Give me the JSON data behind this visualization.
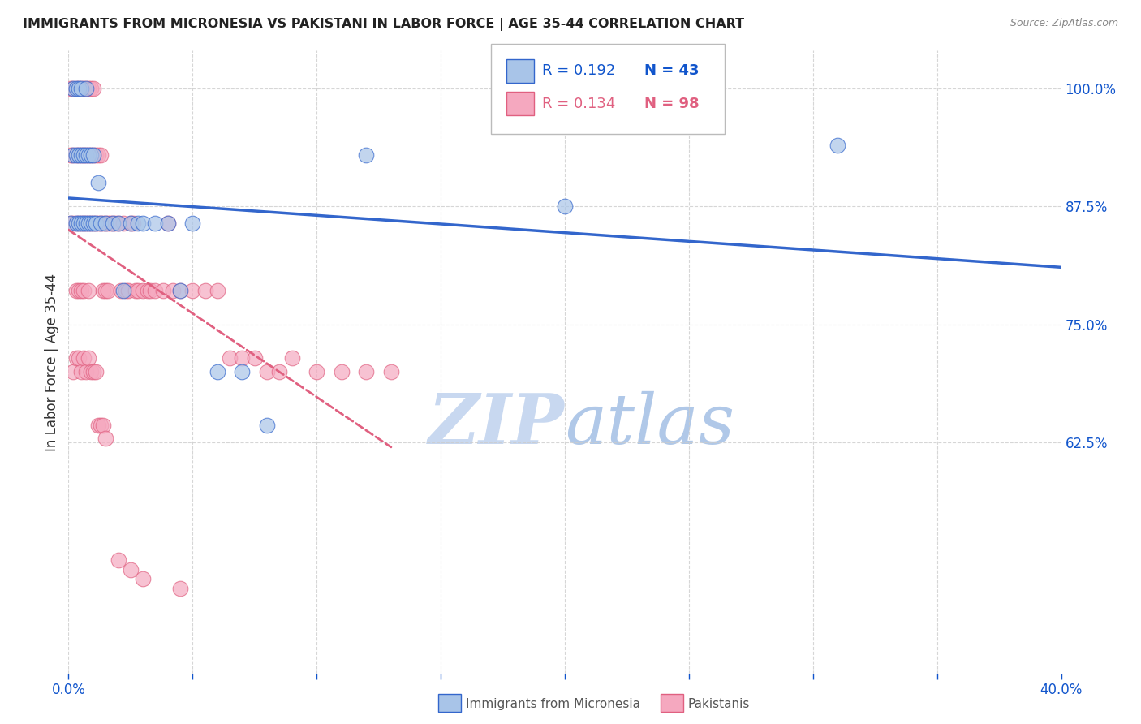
{
  "title": "IMMIGRANTS FROM MICRONESIA VS PAKISTANI IN LABOR FORCE | AGE 35-44 CORRELATION CHART",
  "source": "Source: ZipAtlas.com",
  "ylabel": "In Labor Force | Age 35-44",
  "xlim": [
    0.0,
    0.4
  ],
  "ylim": [
    0.38,
    1.04
  ],
  "yticks": [
    0.625,
    0.75,
    0.875,
    1.0
  ],
  "ytick_labels": [
    "62.5%",
    "75.0%",
    "87.5%",
    "100.0%"
  ],
  "xticks": [
    0.0,
    0.05,
    0.1,
    0.15,
    0.2,
    0.25,
    0.3,
    0.35,
    0.4
  ],
  "xtick_labels": [
    "0.0%",
    "",
    "",
    "",
    "",
    "",
    "",
    "",
    "40.0%"
  ],
  "micronesia_R": 0.192,
  "micronesia_N": 43,
  "pakistani_R": 0.134,
  "pakistani_N": 98,
  "micronesia_color": "#a8c4e8",
  "pakistani_color": "#f5a8bf",
  "micronesia_line_color": "#3366cc",
  "pakistani_line_color": "#e06080",
  "background_color": "#ffffff",
  "grid_color": "#cccccc",
  "title_color": "#222222",
  "source_color": "#888888",
  "axis_color": "#1155cc",
  "watermark_zip_color": "#c8d8f0",
  "watermark_atlas_color": "#b0c8e8",
  "micronesia_x": [
    0.001,
    0.002,
    0.002,
    0.003,
    0.003,
    0.003,
    0.004,
    0.004,
    0.004,
    0.005,
    0.005,
    0.005,
    0.006,
    0.006,
    0.007,
    0.007,
    0.007,
    0.008,
    0.008,
    0.009,
    0.009,
    0.01,
    0.01,
    0.011,
    0.012,
    0.013,
    0.015,
    0.018,
    0.02,
    0.022,
    0.025,
    0.028,
    0.03,
    0.035,
    0.04,
    0.045,
    0.05,
    0.06,
    0.07,
    0.08,
    0.12,
    0.2,
    0.31
  ],
  "micronesia_y": [
    0.857,
    0.929,
    1.0,
    0.857,
    0.929,
    1.0,
    0.857,
    0.929,
    1.0,
    0.857,
    0.929,
    1.0,
    0.857,
    0.929,
    0.857,
    0.929,
    1.0,
    0.857,
    0.929,
    0.857,
    0.929,
    0.857,
    0.929,
    0.857,
    0.9,
    0.857,
    0.857,
    0.857,
    0.857,
    0.786,
    0.857,
    0.857,
    0.857,
    0.857,
    0.857,
    0.786,
    0.857,
    0.7,
    0.7,
    0.643,
    0.929,
    0.875,
    0.94
  ],
  "pakistani_x": [
    0.001,
    0.001,
    0.001,
    0.002,
    0.002,
    0.002,
    0.003,
    0.003,
    0.003,
    0.003,
    0.004,
    0.004,
    0.004,
    0.004,
    0.005,
    0.005,
    0.005,
    0.005,
    0.006,
    0.006,
    0.006,
    0.006,
    0.007,
    0.007,
    0.007,
    0.008,
    0.008,
    0.008,
    0.008,
    0.009,
    0.009,
    0.009,
    0.01,
    0.01,
    0.01,
    0.011,
    0.011,
    0.012,
    0.012,
    0.013,
    0.013,
    0.014,
    0.014,
    0.015,
    0.015,
    0.016,
    0.016,
    0.017,
    0.018,
    0.019,
    0.02,
    0.021,
    0.022,
    0.023,
    0.024,
    0.025,
    0.026,
    0.027,
    0.028,
    0.03,
    0.032,
    0.033,
    0.035,
    0.038,
    0.04,
    0.042,
    0.045,
    0.05,
    0.055,
    0.06,
    0.065,
    0.07,
    0.075,
    0.08,
    0.085,
    0.09,
    0.1,
    0.11,
    0.12,
    0.13,
    0.002,
    0.003,
    0.004,
    0.005,
    0.006,
    0.007,
    0.008,
    0.009,
    0.01,
    0.011,
    0.012,
    0.013,
    0.014,
    0.015,
    0.02,
    0.025,
    0.03,
    0.045
  ],
  "pakistani_y": [
    0.929,
    1.0,
    0.857,
    0.929,
    1.0,
    0.857,
    0.929,
    1.0,
    0.857,
    0.786,
    0.929,
    1.0,
    0.857,
    0.786,
    0.929,
    1.0,
    0.857,
    0.786,
    0.929,
    1.0,
    0.857,
    0.786,
    0.929,
    1.0,
    0.857,
    0.929,
    1.0,
    0.857,
    0.786,
    0.929,
    1.0,
    0.857,
    0.929,
    1.0,
    0.857,
    0.929,
    0.857,
    0.929,
    0.857,
    0.929,
    0.857,
    0.857,
    0.786,
    0.857,
    0.786,
    0.857,
    0.786,
    0.857,
    0.857,
    0.857,
    0.857,
    0.786,
    0.857,
    0.786,
    0.786,
    0.857,
    0.857,
    0.786,
    0.786,
    0.786,
    0.786,
    0.786,
    0.786,
    0.786,
    0.857,
    0.786,
    0.786,
    0.786,
    0.786,
    0.786,
    0.714,
    0.714,
    0.714,
    0.7,
    0.7,
    0.714,
    0.7,
    0.7,
    0.7,
    0.7,
    0.7,
    0.714,
    0.714,
    0.7,
    0.714,
    0.7,
    0.714,
    0.7,
    0.7,
    0.7,
    0.643,
    0.643,
    0.643,
    0.629,
    0.5,
    0.49,
    0.48,
    0.47
  ]
}
